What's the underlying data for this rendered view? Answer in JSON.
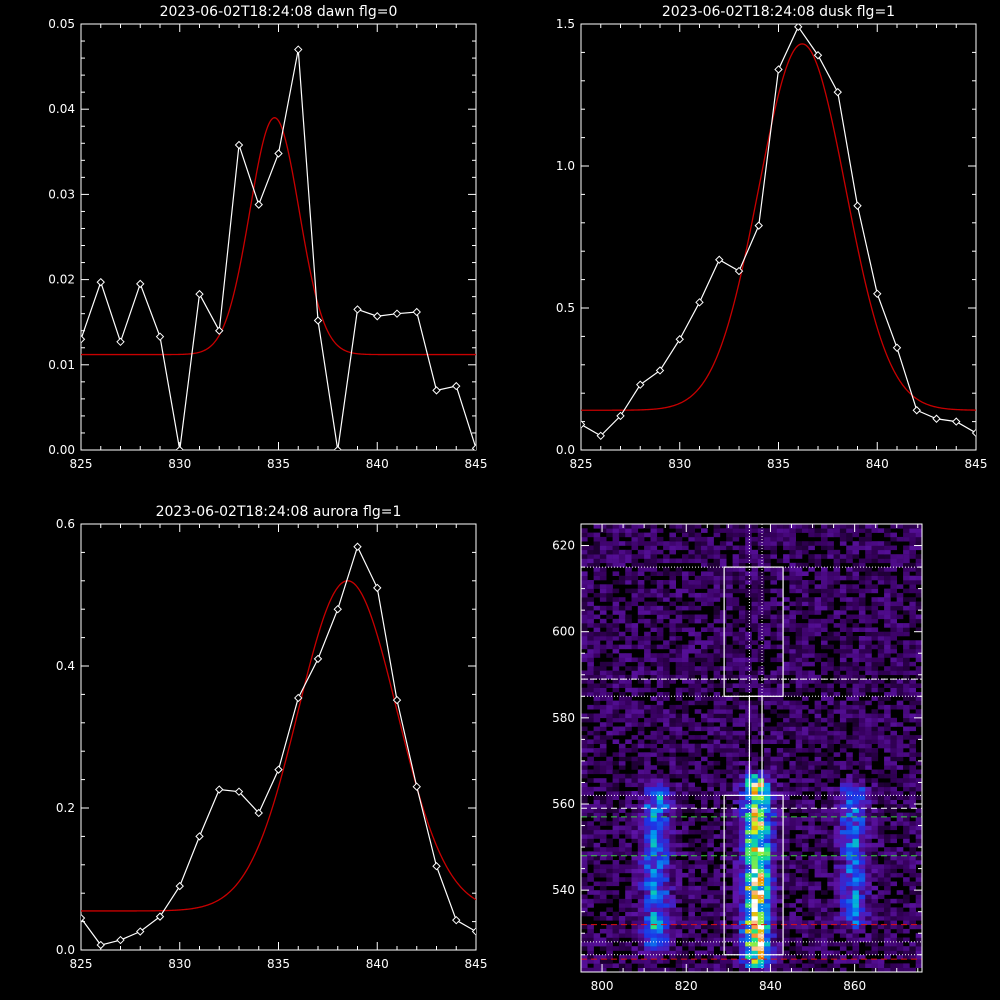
{
  "colors": {
    "background": "#000000",
    "axes": "#ffffff",
    "data_line": "#ffffff",
    "fit_line": "#c80000"
  },
  "chart_data": [
    {
      "id": "dawn",
      "type": "line",
      "title": "2023-06-02T18:24:08 dawn flg=0",
      "xlim": [
        825,
        845
      ],
      "ylim": [
        0,
        0.05
      ],
      "xticks": [
        825,
        830,
        835,
        840,
        845
      ],
      "yticks": [
        0.0,
        0.01,
        0.02,
        0.03,
        0.04,
        0.05
      ],
      "ytick_labels": [
        "0.00",
        "0.01",
        "0.02",
        "0.03",
        "0.04",
        "0.05"
      ],
      "series": [
        {
          "style": "data",
          "x": [
            825,
            826,
            827,
            828,
            829,
            830,
            831,
            832,
            833,
            834,
            835,
            836,
            837,
            838,
            839,
            840,
            841,
            842,
            843,
            844,
            845
          ],
          "y": [
            0.013,
            0.0197,
            0.0127,
            0.0195,
            0.0133,
            0.0,
            0.0183,
            0.014,
            0.0358,
            0.0288,
            0.0348,
            0.047,
            0.0152,
            0.0,
            0.0165,
            0.0157,
            0.016,
            0.0162,
            0.007,
            0.0075,
            0.0002
          ]
        },
        {
          "style": "fit",
          "model": {
            "baseline": 0.0112,
            "amplitude": 0.0278,
            "center": 834.8,
            "sigma": 1.25
          }
        }
      ]
    },
    {
      "id": "dusk",
      "type": "line",
      "title": "2023-06-02T18:24:08 dusk flg=1",
      "xlim": [
        825,
        845
      ],
      "ylim": [
        0,
        1.5
      ],
      "xticks": [
        825,
        830,
        835,
        840,
        845
      ],
      "yticks": [
        0.0,
        0.5,
        1.0,
        1.5
      ],
      "ytick_labels": [
        "0.0",
        "0.5",
        "1.0",
        "1.5"
      ],
      "series": [
        {
          "style": "data",
          "x": [
            825,
            826,
            827,
            828,
            829,
            830,
            831,
            832,
            833,
            834,
            835,
            836,
            837,
            838,
            839,
            840,
            841,
            842,
            843,
            844,
            845
          ],
          "y": [
            0.09,
            0.05,
            0.12,
            0.23,
            0.28,
            0.39,
            0.52,
            0.67,
            0.63,
            0.79,
            1.34,
            1.49,
            1.39,
            1.26,
            0.86,
            0.55,
            0.36,
            0.14,
            0.11,
            0.1,
            0.06
          ]
        },
        {
          "style": "fit",
          "model": {
            "baseline": 0.14,
            "amplitude": 1.29,
            "center": 836.2,
            "sigma": 2.2
          }
        }
      ]
    },
    {
      "id": "aurora",
      "type": "line",
      "title": "2023-06-02T18:24:08 aurora flg=1",
      "xlim": [
        825,
        845
      ],
      "ylim": [
        0,
        0.6
      ],
      "xticks": [
        825,
        830,
        835,
        840,
        845
      ],
      "yticks": [
        0.0,
        0.2,
        0.4,
        0.6
      ],
      "ytick_labels": [
        "0.0",
        "0.2",
        "0.4",
        "0.6"
      ],
      "series": [
        {
          "style": "data",
          "x": [
            825,
            826,
            827,
            828,
            829,
            830,
            831,
            832,
            833,
            834,
            835,
            836,
            837,
            838,
            839,
            840,
            841,
            842,
            843,
            844,
            845
          ],
          "y": [
            0.045,
            0.007,
            0.014,
            0.026,
            0.047,
            0.09,
            0.16,
            0.226,
            0.223,
            0.193,
            0.254,
            0.355,
            0.41,
            0.48,
            0.568,
            0.51,
            0.352,
            0.23,
            0.118,
            0.042,
            0.026
          ]
        },
        {
          "style": "fit",
          "model": {
            "baseline": 0.055,
            "amplitude": 0.465,
            "center": 838.5,
            "sigma": 2.5
          }
        }
      ]
    },
    {
      "id": "image",
      "type": "heatmap",
      "title": "",
      "xlim": [
        795,
        876
      ],
      "ylim": [
        521,
        625
      ],
      "xticks": [
        800,
        820,
        840,
        860
      ],
      "yticks": [
        520,
        540,
        560,
        580,
        600,
        620
      ],
      "grid": {
        "x_cell": 1,
        "y_cell": 1
      },
      "emission_columns": [
        {
          "center": 812,
          "y_range": [
            528,
            562
          ],
          "intensity": 0.55
        },
        {
          "center": 836,
          "y_range": [
            524,
            564
          ],
          "intensity": 1.0
        },
        {
          "center": 859,
          "y_range": [
            533,
            562
          ],
          "intensity": 0.45
        }
      ],
      "boxes": [
        {
          "x": [
            829,
            843
          ],
          "y": [
            585,
            615
          ]
        },
        {
          "x": [
            835,
            838
          ],
          "y": [
            562,
            585
          ]
        },
        {
          "x": [
            829,
            843
          ],
          "y": [
            525,
            562
          ]
        }
      ],
      "dotted_h": [
        615,
        589,
        585,
        562,
        528,
        525
      ],
      "dotted_v": [
        835,
        838
      ],
      "dashed_white_h": [
        589,
        559
      ],
      "dashed_green_h": [
        557,
        548
      ],
      "dashed_red_h": [
        532,
        524
      ]
    }
  ]
}
